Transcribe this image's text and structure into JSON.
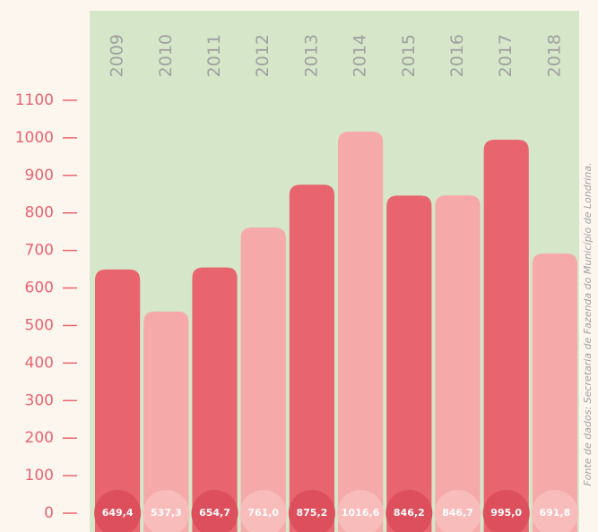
{
  "chart_data": {
    "type": "bar",
    "categories": [
      "2009",
      "2010",
      "2011",
      "2012",
      "2013",
      "2014",
      "2015",
      "2016",
      "2017",
      "2018"
    ],
    "values": [
      649.4,
      537.3,
      654.7,
      761.0,
      875.2,
      1016.6,
      846.2,
      846.7,
      995.0,
      691.8
    ],
    "value_labels": [
      "649,4",
      "537,3",
      "654,7",
      "761,0",
      "875,2",
      "1016,6",
      "846,2",
      "846,7",
      "995,0",
      "691,8"
    ],
    "colors": [
      "#e8646f",
      "#f5a9a8",
      "#e8646f",
      "#f5a9a8",
      "#e8646f",
      "#f5a9a8",
      "#e8646f",
      "#f5a9a8",
      "#e8646f",
      "#f5a9a8"
    ],
    "label_colors": [
      "#dd4f5c",
      "#f8bcbb",
      "#dd4f5c",
      "#f8bcbb",
      "#dd4f5c",
      "#f8bcbb",
      "#dd4f5c",
      "#f8bcbb",
      "#dd4f5c",
      "#f8bcbb"
    ],
    "ylim": [
      0,
      1100
    ],
    "yticks": [
      0,
      100,
      200,
      300,
      400,
      500,
      600,
      700,
      800,
      900,
      1000,
      1100
    ],
    "source": "Fonte de dados: Secretaria de Fazenda do Município de Londrina."
  }
}
